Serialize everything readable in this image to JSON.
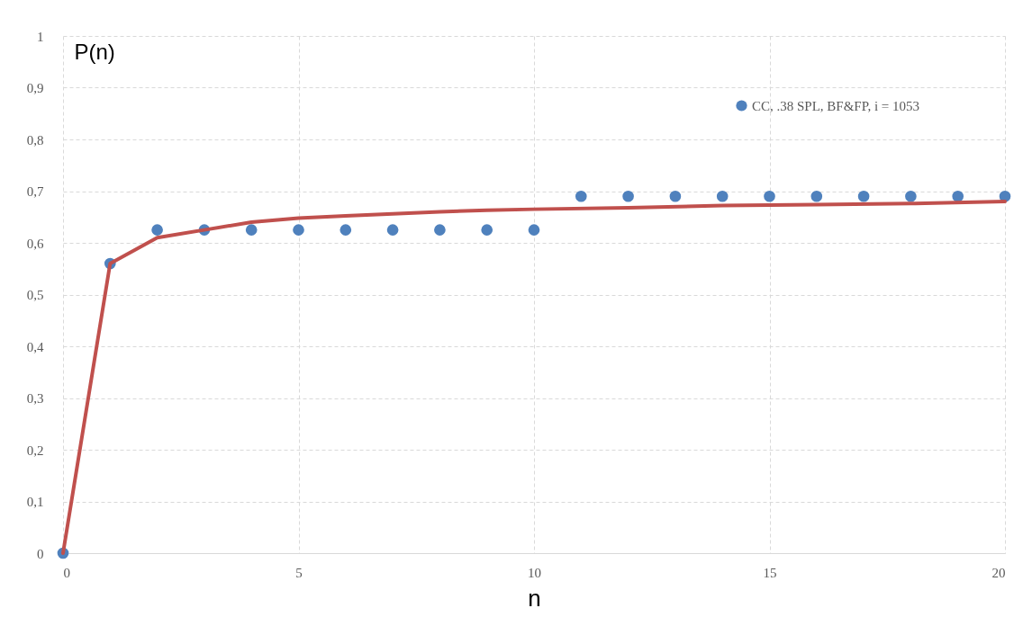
{
  "chart_data": {
    "type": "scatter",
    "ylabel": "P(n)",
    "xlabel": "n",
    "x": [
      0,
      1,
      2,
      3,
      4,
      5,
      6,
      7,
      8,
      9,
      10,
      11,
      12,
      13,
      14,
      15,
      16,
      17,
      18,
      19,
      20
    ],
    "series": [
      {
        "name": "CC, .38 SPL, BF&FP, i = 1053",
        "marker": "circle",
        "color": "#4f81bd",
        "values": [
          0,
          0.56,
          0.625,
          0.625,
          0.625,
          0.625,
          0.625,
          0.625,
          0.625,
          0.625,
          0.625,
          0.69,
          0.69,
          0.69,
          0.69,
          0.69,
          0.69,
          0.69,
          0.69,
          0.69,
          0.69
        ]
      },
      {
        "type": "line",
        "marker": "none",
        "color": "#c0504d",
        "x": [
          0,
          1,
          2,
          3,
          4,
          5,
          6,
          7,
          8,
          9,
          10,
          12,
          14,
          16,
          18,
          20
        ],
        "values": [
          0,
          0.56,
          0.61,
          0.625,
          0.64,
          0.648,
          0.652,
          0.656,
          0.66,
          0.663,
          0.665,
          0.668,
          0.672,
          0.674,
          0.676,
          0.68
        ]
      }
    ],
    "xlim": [
      0,
      20
    ],
    "xticks": [
      0,
      5,
      10,
      15,
      20
    ],
    "ylim": [
      0,
      1
    ],
    "yticks": [
      0,
      {
        "value": 0.1,
        "label": "0,1"
      },
      {
        "value": 0.2,
        "label": "0,2"
      },
      {
        "value": 0.3,
        "label": "0,3"
      },
      {
        "value": 0.4,
        "label": "0,4"
      },
      {
        "value": 0.5,
        "label": "0,5"
      },
      {
        "value": 0.6,
        "label": "0,6"
      },
      {
        "value": 0.7,
        "label": "0,7"
      },
      {
        "value": 0.8,
        "label": "0,8"
      },
      {
        "value": 0.9,
        "label": "0,9"
      },
      1
    ],
    "grid": true,
    "legend": "top right"
  }
}
